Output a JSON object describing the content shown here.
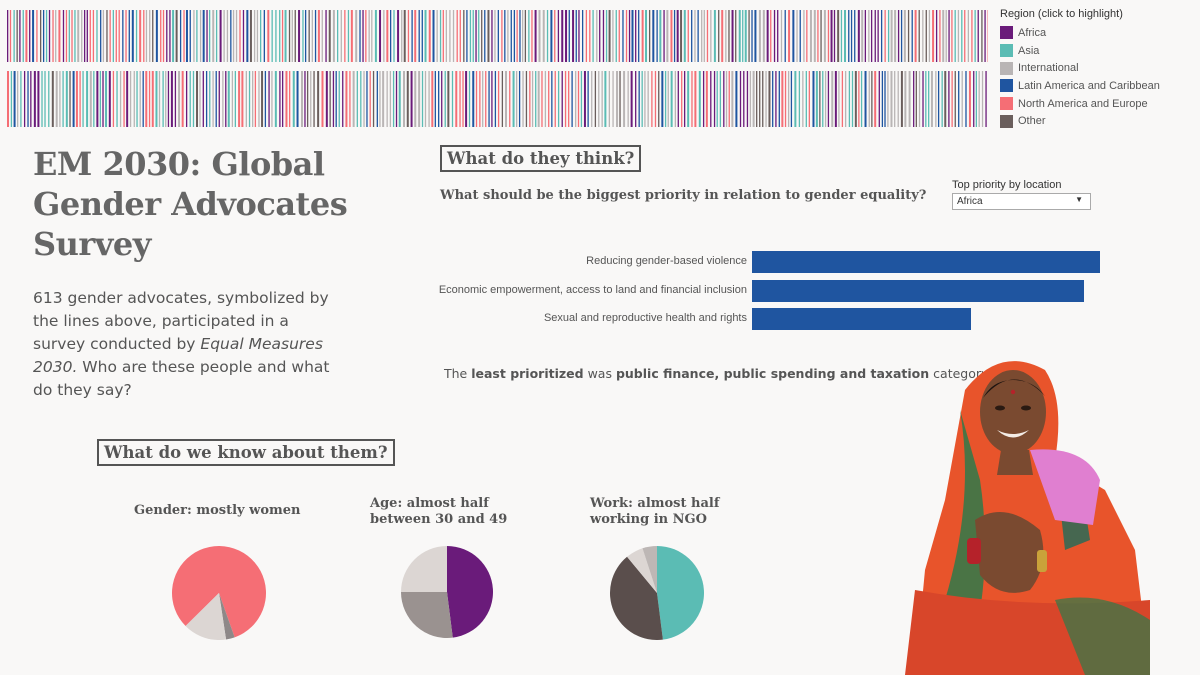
{
  "legend": {
    "title": "Region (click to highlight)",
    "items": [
      {
        "label": "Africa",
        "color": "#6a1b7a"
      },
      {
        "label": "Asia",
        "color": "#5bbcb4"
      },
      {
        "label": "International",
        "color": "#b9b5b5"
      },
      {
        "label": "Latin America and Caribbean",
        "color": "#1f55a0"
      },
      {
        "label": "North America and Europe",
        "color": "#f56e75"
      },
      {
        "label": "Other",
        "color": "#6a5e5c"
      }
    ]
  },
  "header": {
    "title": "EM 2030: Global Gender Advocates Survey",
    "intro_count": "613",
    "intro_text_a": " gender advocates, symbolized by the lines above, participated in a survey conducted by ",
    "intro_em": "Equal Measures 2030.",
    "intro_text_b": " Who are these people and what do they say?"
  },
  "think": {
    "heading": "What do they think?",
    "question": "What should be the biggest priority in relation to gender equality?",
    "filter_label": "Top priority by location",
    "filter_value": "Africa"
  },
  "chart_data": [
    {
      "type": "bar",
      "orientation": "horizontal",
      "categories": [
        "Reducing gender-based violence",
        "Economic empowerment, access to land and financial inclusion",
        "Sexual and reproductive health and rights"
      ],
      "values": [
        1.0,
        0.955,
        0.63
      ],
      "color": "#1f55a0"
    },
    {
      "type": "pie",
      "title": "Gender: mostly women",
      "values": [
        0.82,
        0.03,
        0.15
      ],
      "colors": [
        "#f56e75",
        "#8e8888",
        "#dcd6d3"
      ]
    },
    {
      "type": "pie",
      "title": "Age: almost half between 30 and 49",
      "values": [
        0.48,
        0.27,
        0.25
      ],
      "colors": [
        "#6a1b7a",
        "#9a9290",
        "#dcd6d3"
      ]
    },
    {
      "type": "pie",
      "title": "Work: almost half working in NGO",
      "values": [
        0.48,
        0.41,
        0.06,
        0.05
      ],
      "colors": [
        "#5bbcb4",
        "#5a4e4c",
        "#dcd6d3",
        "#bdb7b5"
      ]
    }
  ],
  "least": {
    "prefix": "The ",
    "bold1": "least prioritized",
    "mid": " was ",
    "bold2": "public finance, public spending and taxation",
    "suffix": " category."
  },
  "know": {
    "heading": "What do we know about them?"
  },
  "photo": {
    "saree_primary": "#e8542b",
    "blouse": "#e07fd0"
  }
}
